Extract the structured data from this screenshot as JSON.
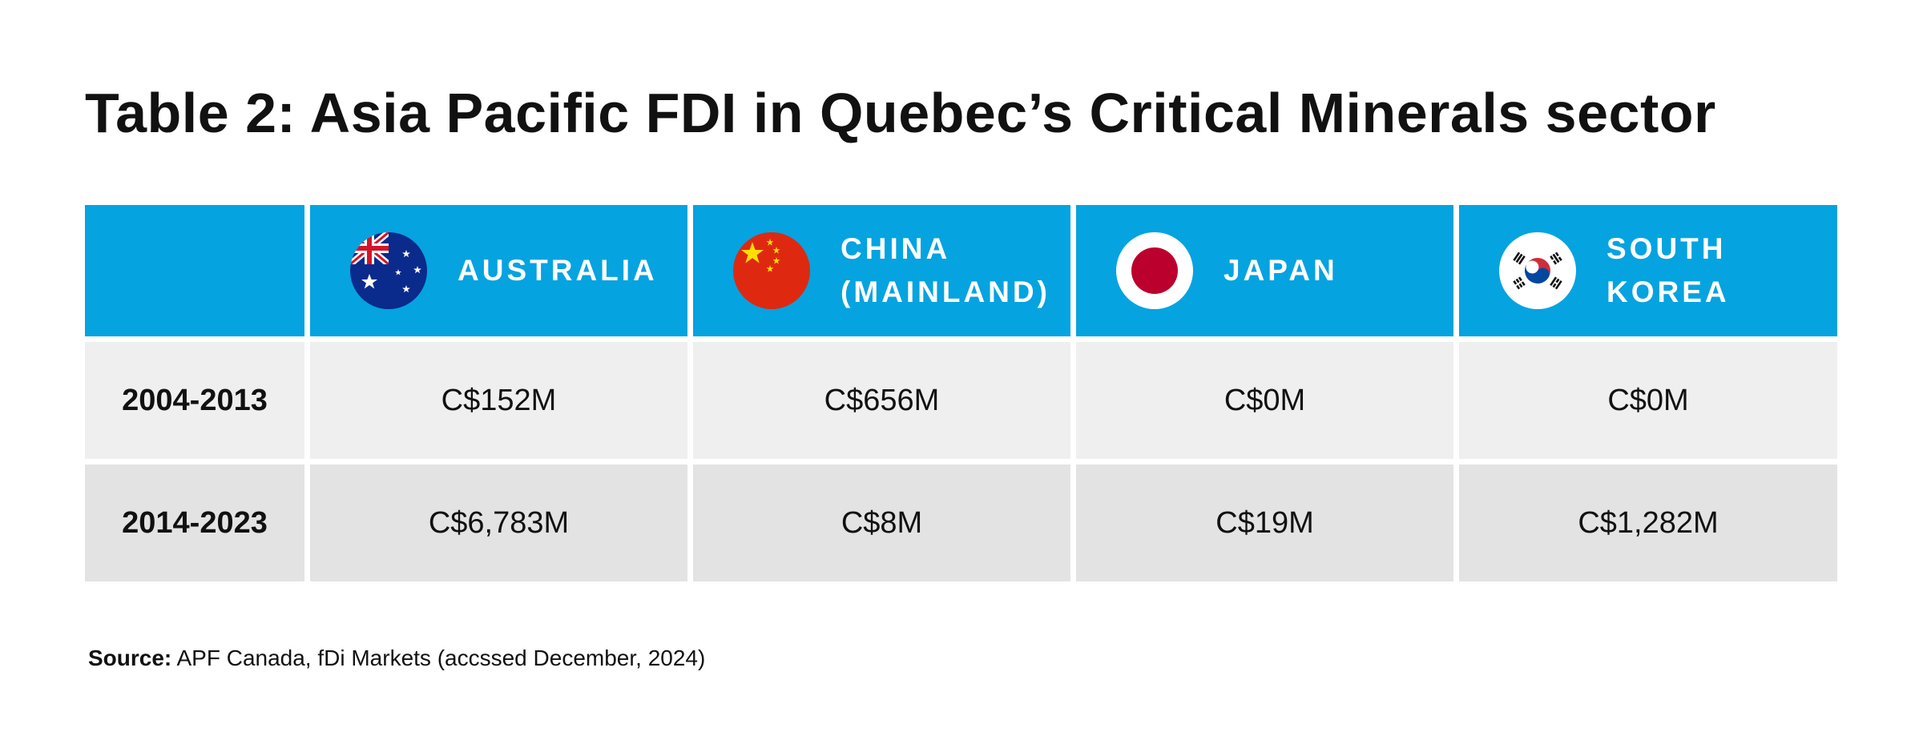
{
  "title": "Table 2: Asia Pacific FDI in Quebec’s Critical Minerals sector",
  "colors": {
    "header_bg": "#05a3e0",
    "row_light": "#efefef",
    "row_dark": "#e3e3e3"
  },
  "table": {
    "columns": [
      {
        "name": "AUSTRALIA",
        "flag_icon": "australia-flag-icon"
      },
      {
        "name": "CHINA\n(MAINLAND)",
        "flag_icon": "china-flag-icon"
      },
      {
        "name": "JAPAN",
        "flag_icon": "japan-flag-icon"
      },
      {
        "name": "SOUTH\nKOREA",
        "flag_icon": "south-korea-flag-icon"
      }
    ],
    "rows": [
      {
        "period": "2004-2013",
        "values": [
          "C$152M",
          "C$656M",
          "C$0M",
          "C$0M"
        ]
      },
      {
        "period": "2014-2023",
        "values": [
          "C$6,783M",
          "C$8M",
          "C$19M",
          "C$1,282M"
        ]
      }
    ]
  },
  "source": {
    "label": "Source:",
    "text": " APF Canada, fDi Markets (accssed December, 2024)"
  }
}
